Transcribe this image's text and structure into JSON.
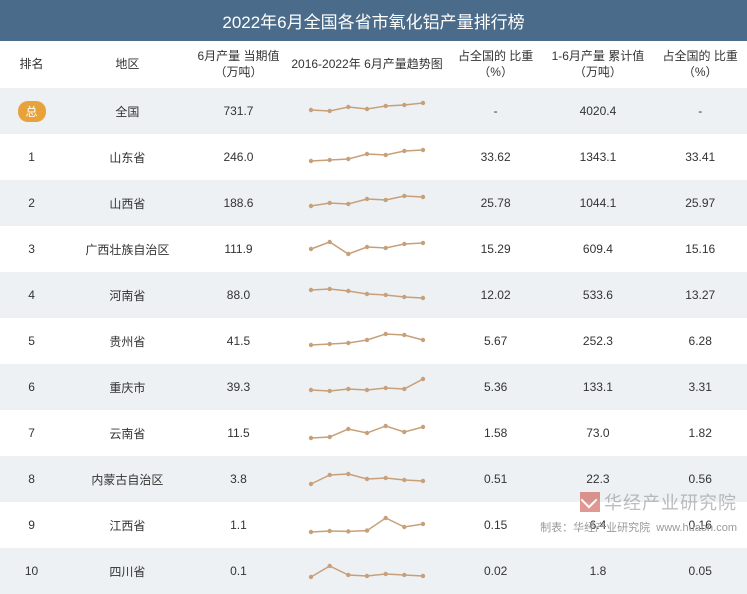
{
  "title": "2022年6月全国各省市氧化铝产量排行榜",
  "columns": {
    "rank": "排名",
    "region": "地区",
    "value": "6月产量\n当期值\n（万吨）",
    "trend": "2016-2022年\n6月产量趋势图",
    "pct1": "占全国的\n比重\n（%）",
    "cum": "1-6月产量\n累计值\n（万吨）",
    "pct2": "占全国的\n比重\n（%）"
  },
  "spark_style": {
    "width": 120,
    "height": 26,
    "stroke": "#c7a07a",
    "stroke_width": 1.5,
    "marker_fill": "#c7a07a",
    "marker_radius": 2.2
  },
  "rows": [
    {
      "rank": "总",
      "rank_badge": true,
      "region": "全国",
      "value": "731.7",
      "pct1": "-",
      "cum": "4020.4",
      "pct2": "-",
      "trend": [
        0.55,
        0.5,
        0.7,
        0.6,
        0.75,
        0.8,
        0.9
      ]
    },
    {
      "rank": "1",
      "region": "山东省",
      "value": "246.0",
      "pct1": "33.62",
      "cum": "1343.1",
      "pct2": "33.41",
      "trend": [
        0.3,
        0.35,
        0.4,
        0.65,
        0.6,
        0.8,
        0.85
      ]
    },
    {
      "rank": "2",
      "region": "山西省",
      "value": "188.6",
      "pct1": "25.78",
      "cum": "1044.1",
      "pct2": "25.97",
      "trend": [
        0.35,
        0.5,
        0.45,
        0.7,
        0.65,
        0.85,
        0.8
      ]
    },
    {
      "rank": "3",
      "region": "广西壮族自治区",
      "value": "111.9",
      "pct1": "15.29",
      "cum": "609.4",
      "pct2": "15.16",
      "trend": [
        0.5,
        0.85,
        0.25,
        0.6,
        0.55,
        0.75,
        0.8
      ]
    },
    {
      "rank": "4",
      "region": "河南省",
      "value": "88.0",
      "pct1": "12.02",
      "cum": "533.6",
      "pct2": "13.27",
      "trend": [
        0.75,
        0.8,
        0.7,
        0.55,
        0.5,
        0.4,
        0.35
      ]
    },
    {
      "rank": "5",
      "region": "贵州省",
      "value": "41.5",
      "pct1": "5.67",
      "cum": "252.3",
      "pct2": "6.28",
      "trend": [
        0.3,
        0.35,
        0.4,
        0.55,
        0.85,
        0.8,
        0.55
      ]
    },
    {
      "rank": "6",
      "region": "重庆市",
      "value": "39.3",
      "pct1": "5.36",
      "cum": "133.1",
      "pct2": "3.31",
      "trend": [
        0.35,
        0.3,
        0.4,
        0.35,
        0.45,
        0.4,
        0.9
      ]
    },
    {
      "rank": "7",
      "region": "云南省",
      "value": "11.5",
      "pct1": "1.58",
      "cum": "73.0",
      "pct2": "1.82",
      "trend": [
        0.25,
        0.3,
        0.7,
        0.5,
        0.85,
        0.55,
        0.8
      ]
    },
    {
      "rank": "8",
      "region": "内蒙古自治区",
      "value": "3.8",
      "pct1": "0.51",
      "cum": "22.3",
      "pct2": "0.56",
      "trend": [
        0.25,
        0.7,
        0.75,
        0.5,
        0.55,
        0.45,
        0.4
      ]
    },
    {
      "rank": "9",
      "region": "江西省",
      "value": "1.1",
      "pct1": "0.15",
      "cum": "6.4",
      "pct2": "0.16",
      "trend": [
        0.15,
        0.2,
        0.18,
        0.22,
        0.85,
        0.4,
        0.55
      ]
    },
    {
      "rank": "10",
      "region": "四川省",
      "value": "0.1",
      "pct1": "0.02",
      "cum": "1.8",
      "pct2": "0.05",
      "trend": [
        0.2,
        0.75,
        0.3,
        0.25,
        0.35,
        0.3,
        0.25
      ]
    }
  ],
  "watermark_text": "华经产业研究院",
  "footer_label": "制表：",
  "footer_value": "华经产业研究院",
  "footer_url": "www.huaon.com"
}
